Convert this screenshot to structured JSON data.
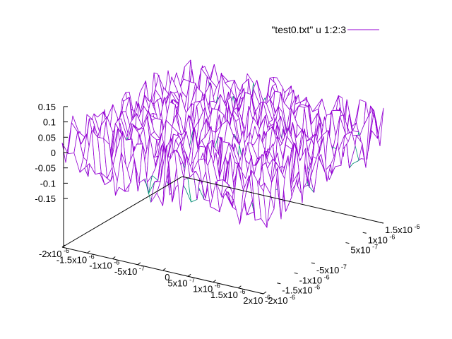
{
  "colors": {
    "surface_top": "#9400d3",
    "surface_bottom": "#009e73",
    "axis": "#000000",
    "background": "#ffffff"
  },
  "chart_data": {
    "type": "surface",
    "title": "",
    "legend": {
      "position": "top-right",
      "entries": [
        {
          "label": "\"test0.txt\" u 1:2:3",
          "color": "#9400d3"
        }
      ]
    },
    "grid": false,
    "xlim": [
      -2e-06,
      2e-06
    ],
    "ylim": [
      -2e-06,
      1.5e-06
    ],
    "zlim": [
      -0.15,
      0.15
    ],
    "ticks": {
      "z": [
        {
          "value": 0.15,
          "label": "0.15"
        },
        {
          "value": 0.1,
          "label": "0.1"
        },
        {
          "value": 0.05,
          "label": "0.05"
        },
        {
          "value": 0,
          "label": "0"
        },
        {
          "value": -0.05,
          "label": "-0.05"
        },
        {
          "value": -0.1,
          "label": "-0.1"
        },
        {
          "value": -0.15,
          "label": "-0.15"
        }
      ],
      "x": [
        {
          "value": -2e-06,
          "mant": "-2x10",
          "exp": "-6"
        },
        {
          "value": -1.5e-06,
          "mant": "-1.5x10",
          "exp": "-6"
        },
        {
          "value": -1e-06,
          "mant": "-1x10",
          "exp": "-6"
        },
        {
          "value": -5e-07,
          "mant": "-5x10",
          "exp": "-7"
        },
        {
          "value": 0,
          "mant": "0",
          "exp": ""
        },
        {
          "value": 5e-07,
          "mant": "5x10",
          "exp": "-7"
        },
        {
          "value": 1e-06,
          "mant": "1x10",
          "exp": "-6"
        },
        {
          "value": 1.5e-06,
          "mant": "1.5x10",
          "exp": "-6"
        },
        {
          "value": 2e-06,
          "mant": "2x10",
          "exp": "-6"
        }
      ],
      "y": [
        {
          "value": -2e-06,
          "mant": "-2x10",
          "exp": "-6"
        },
        {
          "value": -1.5e-06,
          "mant": "-1.5x10",
          "exp": "-6"
        },
        {
          "value": -1e-06,
          "mant": "-1x10",
          "exp": "-6"
        },
        {
          "value": -5e-07,
          "mant": "-5x10",
          "exp": "-7"
        },
        {
          "value": 5e-07,
          "mant": "5x10",
          "exp": "-7"
        },
        {
          "value": 1e-06,
          "mant": "1x10",
          "exp": "-6"
        },
        {
          "value": 1.5e-06,
          "mant": "1.5x10",
          "exp": "-6"
        }
      ]
    },
    "surface": {
      "description_note": "random noise surface, values between about -0.1 and 0.1",
      "z_range": [
        -0.1,
        0.1
      ]
    }
  }
}
